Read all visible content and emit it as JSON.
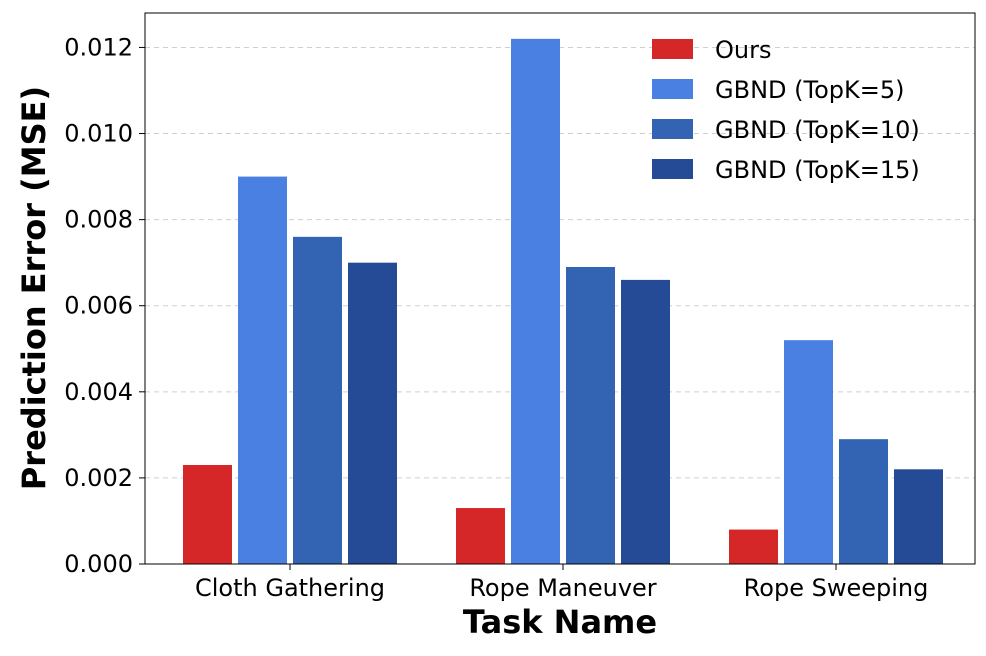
{
  "chart_data": {
    "type": "bar",
    "title": "",
    "xlabel": "Task Name",
    "ylabel": "Prediction Error (MSE)",
    "categories": [
      "Cloth Gathering",
      "Rope Maneuver",
      "Rope Sweeping"
    ],
    "series": [
      {
        "name": "Ours",
        "color": "#d62728",
        "values": [
          0.0023,
          0.0013,
          0.0008
        ]
      },
      {
        "name": "GBND (TopK=5)",
        "color": "#4a80e2",
        "values": [
          0.009,
          0.0122,
          0.0052
        ]
      },
      {
        "name": "GBND (TopK=10)",
        "color": "#3364b3",
        "values": [
          0.0076,
          0.0069,
          0.0029
        ]
      },
      {
        "name": "GBND (TopK=15)",
        "color": "#264b96",
        "values": [
          0.007,
          0.0066,
          0.0022
        ]
      }
    ],
    "ylim": [
      0,
      0.0128
    ],
    "yticks": [
      "0.000",
      "0.002",
      "0.004",
      "0.006",
      "0.008",
      "0.010",
      "0.012"
    ],
    "grid": true,
    "legend_position": "top-right"
  }
}
